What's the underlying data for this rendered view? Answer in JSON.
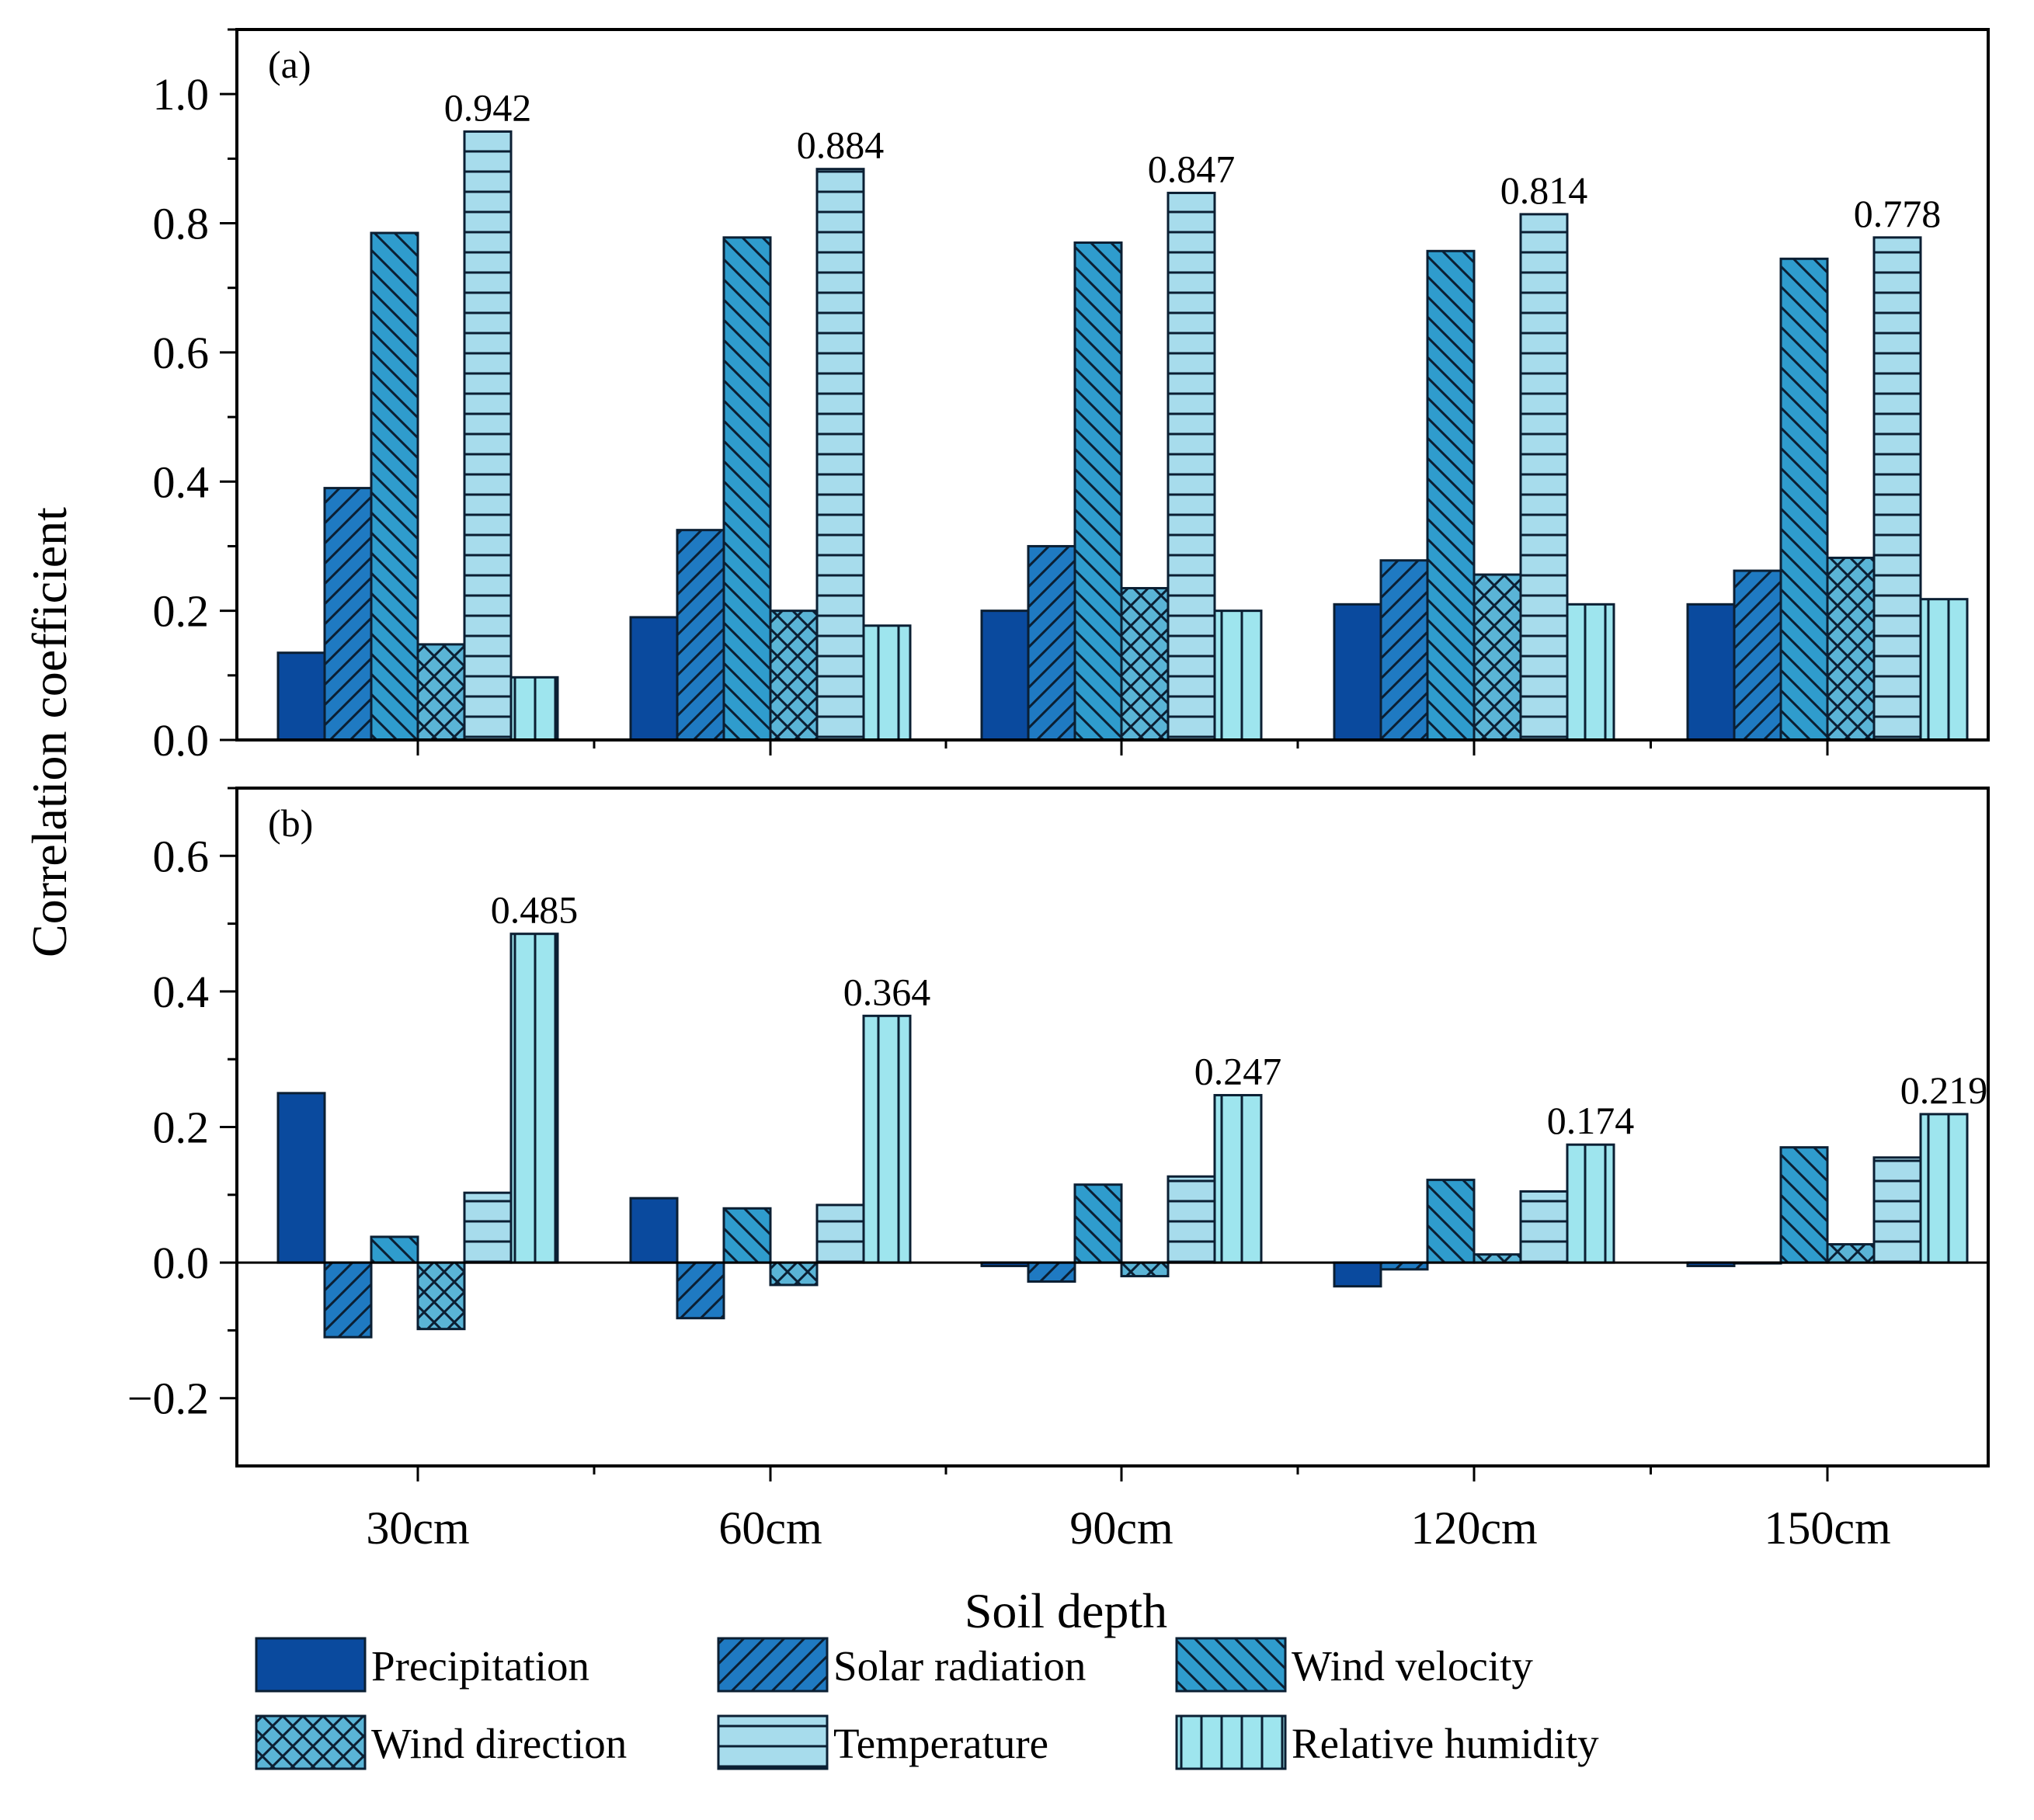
{
  "chart_data": {
    "type": "bar",
    "ylabel": "Correlation coefficient",
    "xlabel": "Soil depth",
    "categories": [
      "30cm",
      "60cm",
      "90cm",
      "120cm",
      "150cm"
    ],
    "series_styles": [
      {
        "name": "Precipitation",
        "color": "#0a4a9e",
        "pattern": "solid"
      },
      {
        "name": "Solar radiation",
        "color": "#1f7ac2",
        "pattern": "diag-up"
      },
      {
        "name": "Wind velocity",
        "color": "#2f9ccd",
        "pattern": "diag-down"
      },
      {
        "name": "Wind direction",
        "color": "#5ab4d6",
        "pattern": "cross"
      },
      {
        "name": "Temperature",
        "color": "#a7dcec",
        "pattern": "horizontal"
      },
      {
        "name": "Relative humidity",
        "color": "#9ee5ee",
        "pattern": "vertical"
      }
    ],
    "panels": [
      {
        "label": "(a)",
        "ylim": [
          0,
          1.1
        ],
        "yticks": [
          0.0,
          0.2,
          0.4,
          0.6,
          0.8,
          1.0
        ],
        "ytick_labels": [
          "0.0",
          "0.2",
          "0.4",
          "0.6",
          "0.8",
          "1.0"
        ],
        "series": [
          {
            "name": "Precipitation",
            "values": [
              0.135,
              0.19,
              0.2,
              0.21,
              0.21
            ]
          },
          {
            "name": "Solar radiation",
            "values": [
              0.39,
              0.325,
              0.3,
              0.278,
              0.262
            ]
          },
          {
            "name": "Wind velocity",
            "values": [
              0.785,
              0.778,
              0.77,
              0.757,
              0.745
            ]
          },
          {
            "name": "Wind direction",
            "values": [
              0.148,
              0.2,
              0.235,
              0.256,
              0.282
            ]
          },
          {
            "name": "Temperature",
            "values": [
              0.942,
              0.884,
              0.847,
              0.814,
              0.778
            ]
          },
          {
            "name": "Relative humidity",
            "values": [
              0.097,
              0.177,
              0.2,
              0.21,
              0.218
            ]
          }
        ],
        "annotations": [
          "0.942",
          "0.884",
          "0.847",
          "0.814",
          "0.778"
        ]
      },
      {
        "label": "(b)",
        "ylim": [
          -0.3,
          0.7
        ],
        "yticks": [
          -0.2,
          0.0,
          0.2,
          0.4,
          0.6
        ],
        "ytick_labels": [
          "−0.2",
          "0.0",
          "0.2",
          "0.4",
          "0.6"
        ],
        "series": [
          {
            "name": "Precipitation",
            "values": [
              0.25,
              0.095,
              -0.005,
              -0.035,
              -0.005
            ]
          },
          {
            "name": "Solar radiation",
            "values": [
              -0.11,
              -0.082,
              -0.028,
              -0.01,
              0.0
            ]
          },
          {
            "name": "Wind velocity",
            "values": [
              0.038,
              0.08,
              0.115,
              0.122,
              0.17
            ]
          },
          {
            "name": "Wind direction",
            "values": [
              -0.098,
              -0.033,
              -0.02,
              0.012,
              0.027
            ]
          },
          {
            "name": "Temperature",
            "values": [
              0.103,
              0.085,
              0.127,
              0.105,
              0.155
            ]
          },
          {
            "name": "Relative humidity",
            "values": [
              0.485,
              0.364,
              0.247,
              0.174,
              0.219
            ]
          }
        ],
        "annotations": [
          "0.485",
          "0.364",
          "0.247",
          "0.174",
          "0.219"
        ]
      }
    ]
  }
}
